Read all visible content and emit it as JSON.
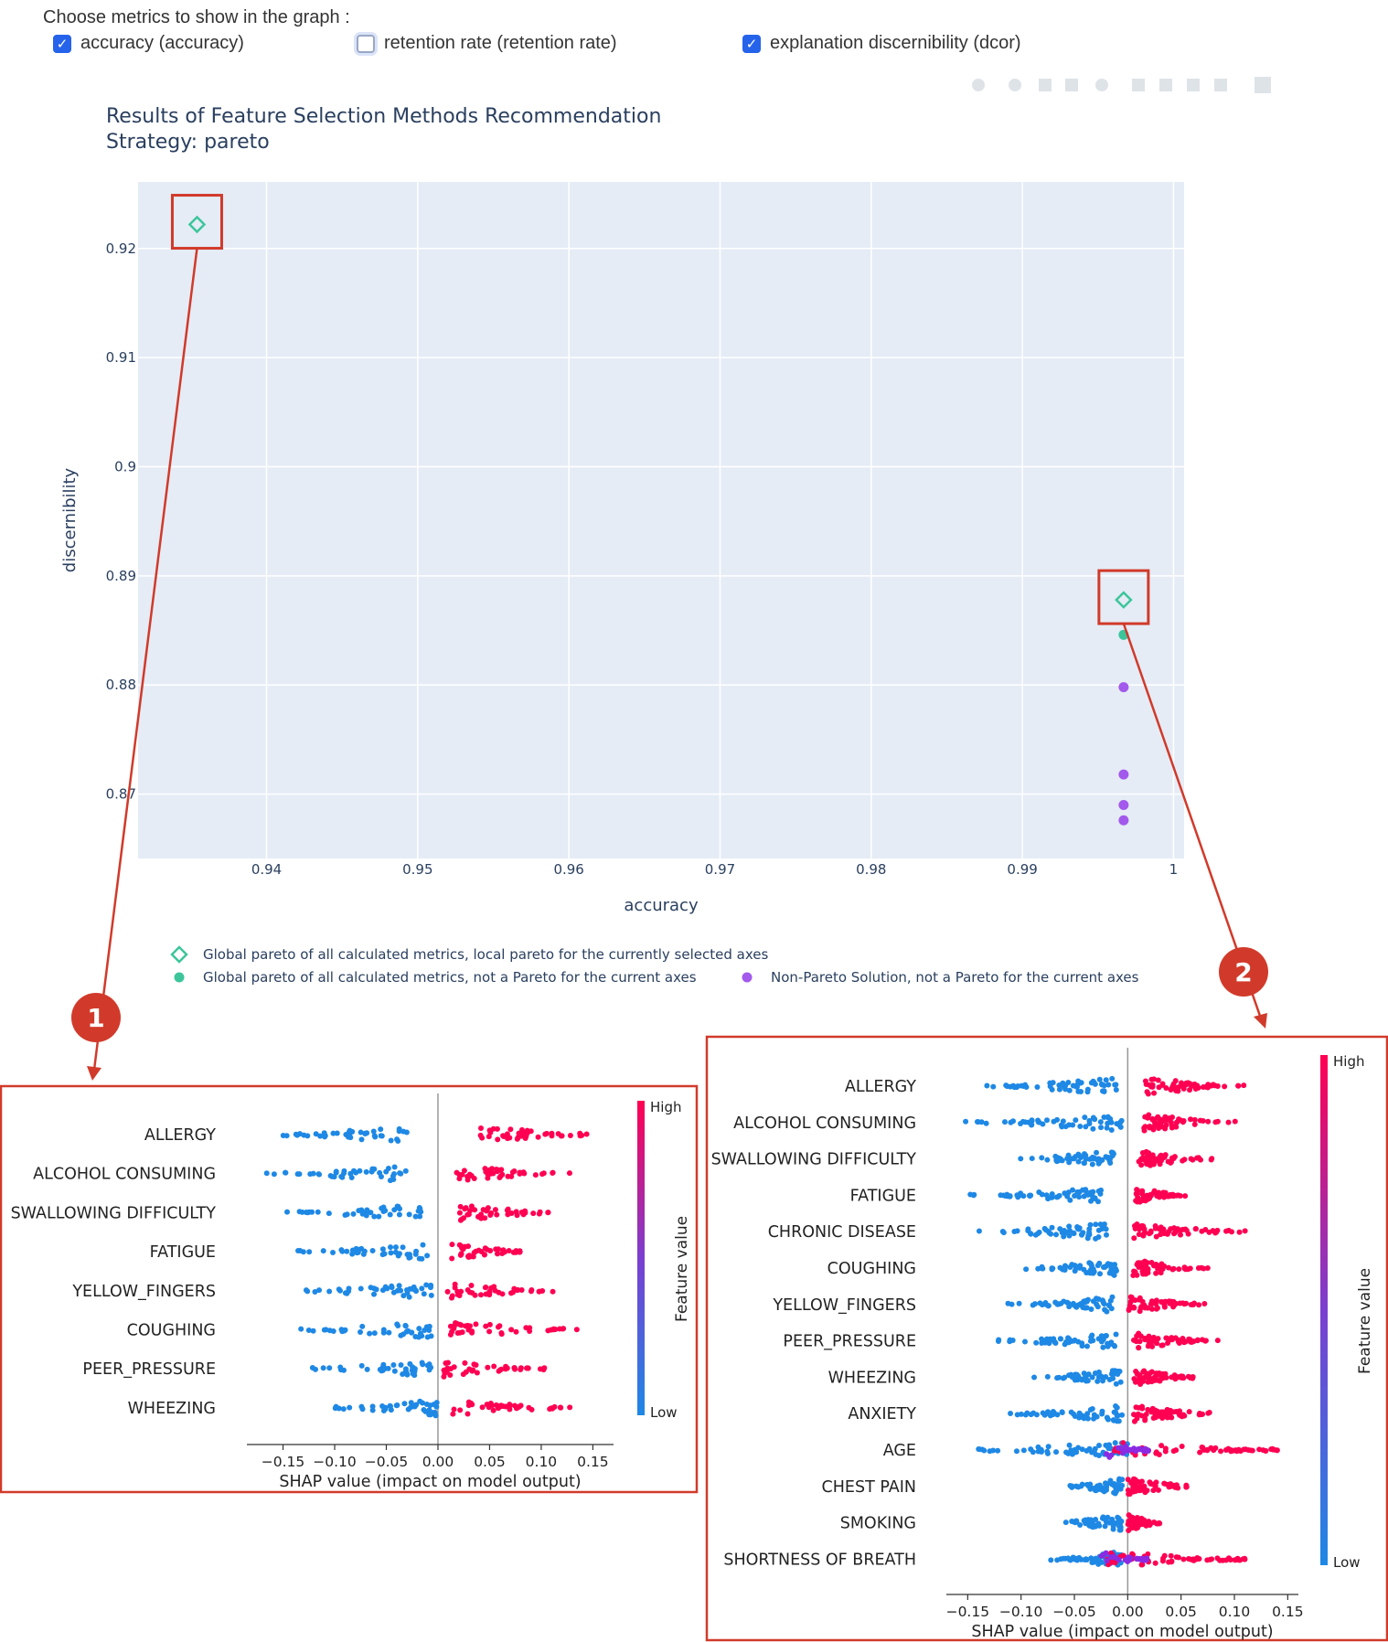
{
  "controls": {
    "heading": "Choose metrics to show in the graph :",
    "metrics": [
      {
        "label": "accuracy (accuracy)",
        "checked": true
      },
      {
        "label": "retention rate (retention rate)",
        "checked": false
      },
      {
        "label": "explanation discernibility (dcor)",
        "checked": true
      }
    ]
  },
  "callouts": [
    "1",
    "2"
  ],
  "colors": {
    "plot_bg": "#e5ecf6",
    "pareto_teal": "#3cc59b",
    "non_pareto_purple": "#a259ec",
    "callout_red": "#d13a2a",
    "shap_high": "#ff0052",
    "shap_low": "#1e88e5"
  },
  "chart_data": [
    {
      "type": "scatter",
      "title": "Results of Feature Selection Methods Recommendation",
      "subtitle": "Strategy: pareto",
      "xlabel": "accuracy",
      "ylabel": "discernibility",
      "xlim": [
        0.9315,
        1.0007
      ],
      "ylim": [
        0.8641,
        0.9261
      ],
      "xticks": [
        "0.94",
        "0.95",
        "0.96",
        "0.97",
        "0.98",
        "0.99",
        "1"
      ],
      "xtick_values": [
        0.94,
        0.95,
        0.96,
        0.97,
        0.98,
        0.99,
        1.0
      ],
      "yticks": [
        "0.87",
        "0.88",
        "0.89",
        "0.9",
        "0.91",
        "0.92"
      ],
      "ytick_values": [
        0.87,
        0.88,
        0.89,
        0.9,
        0.91,
        0.92
      ],
      "grid": true,
      "legend_position": "bottom",
      "series": [
        {
          "name": "Global pareto of all calculated metrics, local pareto for the currently selected axes",
          "marker": "diamond-open",
          "color": "#3cc59b",
          "points": [
            {
              "x": 0.9354,
              "y": 0.9222
            },
            {
              "x": 0.9967,
              "y": 0.8878
            }
          ]
        },
        {
          "name": "Global pareto of all calculated metrics, not a Pareto for the current axes",
          "marker": "circle",
          "color": "#3cc59b",
          "points": [
            {
              "x": 0.9967,
              "y": 0.8846
            }
          ]
        },
        {
          "name": "Non-Pareto Solution, not a Pareto for the current axes",
          "marker": "circle",
          "color": "#a259ec",
          "points": [
            {
              "x": 0.9967,
              "y": 0.8798
            },
            {
              "x": 0.9967,
              "y": 0.8718
            },
            {
              "x": 0.9967,
              "y": 0.869
            },
            {
              "x": 0.9967,
              "y": 0.8676
            }
          ]
        }
      ]
    },
    {
      "type": "scatter",
      "subtype": "shap-beeswarm",
      "callout": "1",
      "xlabel": "SHAP value (impact on model output)",
      "xlim": [
        -0.185,
        0.17
      ],
      "xticks": [
        "−0.15",
        "−0.10",
        "−0.05",
        "0.00",
        "0.05",
        "0.10",
        "0.15"
      ],
      "xtick_values": [
        -0.15,
        -0.1,
        -0.05,
        0.0,
        0.05,
        0.1,
        0.15
      ],
      "colorbar_label": "Feature value",
      "colorbar_high": "High",
      "colorbar_low": "Low",
      "features": [
        {
          "name": "ALLERGY",
          "low": [
            -0.17,
            -0.03
          ],
          "high": [
            0.04,
            0.155
          ]
        },
        {
          "name": "ALCOHOL CONSUMING",
          "low": [
            -0.17,
            -0.03
          ],
          "high": [
            0.015,
            0.13
          ]
        },
        {
          "name": "SWALLOWING DIFFICULTY",
          "low": [
            -0.155,
            -0.015
          ],
          "high": [
            0.02,
            0.125
          ]
        },
        {
          "name": "FATIGUE",
          "low": [
            -0.15,
            -0.01
          ],
          "high": [
            0.01,
            0.095
          ]
        },
        {
          "name": "YELLOW_FINGERS",
          "low": [
            -0.155,
            -0.005
          ],
          "high": [
            0.008,
            0.12
          ]
        },
        {
          "name": "COUGHING",
          "low": [
            -0.15,
            -0.005
          ],
          "high": [
            0.01,
            0.15
          ]
        },
        {
          "name": "PEER_PRESSURE",
          "low": [
            -0.14,
            -0.002
          ],
          "high": [
            0.005,
            0.11
          ]
        },
        {
          "name": "WHEEZING",
          "low": [
            -0.11,
            0.0
          ],
          "high": [
            0.01,
            0.15
          ]
        }
      ]
    },
    {
      "type": "scatter",
      "subtype": "shap-beeswarm",
      "callout": "2",
      "xlabel": "SHAP value (impact on model output)",
      "xlim": [
        -0.17,
        0.16
      ],
      "xticks": [
        "−0.15",
        "−0.10",
        "−0.05",
        "0.00",
        "0.05",
        "0.10",
        "0.15"
      ],
      "xtick_values": [
        -0.15,
        -0.1,
        -0.05,
        0.0,
        0.05,
        0.1,
        0.15
      ],
      "colorbar_label": "Feature value",
      "colorbar_high": "High",
      "colorbar_low": "Low",
      "features": [
        {
          "name": "ALLERGY",
          "low": [
            -0.14,
            -0.01
          ],
          "high": [
            0.015,
            0.12
          ]
        },
        {
          "name": "ALCOHOL CONSUMING",
          "low": [
            -0.155,
            -0.005
          ],
          "high": [
            0.015,
            0.11
          ]
        },
        {
          "name": "SWALLOWING DIFFICULTY",
          "low": [
            -0.11,
            -0.01
          ],
          "high": [
            0.01,
            0.08
          ]
        },
        {
          "name": "FATIGUE",
          "low": [
            -0.15,
            -0.02
          ],
          "high": [
            0.005,
            0.06
          ]
        },
        {
          "name": "CHRONIC DISEASE",
          "low": [
            -0.15,
            -0.02
          ],
          "high": [
            0.005,
            0.115
          ]
        },
        {
          "name": "COUGHING",
          "low": [
            -0.1,
            -0.01
          ],
          "high": [
            0.005,
            0.08
          ]
        },
        {
          "name": "YELLOW_FINGERS",
          "low": [
            -0.115,
            -0.01
          ],
          "high": [
            0.0,
            0.08
          ]
        },
        {
          "name": "PEER_PRESSURE",
          "low": [
            -0.14,
            -0.01
          ],
          "high": [
            0.005,
            0.085
          ]
        },
        {
          "name": "WHEEZING",
          "low": [
            -0.09,
            -0.005
          ],
          "high": [
            0.005,
            0.07
          ]
        },
        {
          "name": "ANXIETY",
          "low": [
            -0.115,
            -0.005
          ],
          "high": [
            0.005,
            0.09
          ]
        },
        {
          "name": "AGE",
          "low": [
            -0.16,
            0.0
          ],
          "high": [
            -0.02,
            0.145
          ],
          "mixed": true
        },
        {
          "name": "CHEST PAIN",
          "low": [
            -0.065,
            -0.005
          ],
          "high": [
            0.0,
            0.07
          ]
        },
        {
          "name": "SMOKING",
          "low": [
            -0.075,
            -0.005
          ],
          "high": [
            0.0,
            0.035
          ]
        },
        {
          "name": "SHORTNESS OF BREATH",
          "low": [
            -0.075,
            -0.005
          ],
          "high": [
            -0.02,
            0.11
          ],
          "mixed": true
        }
      ]
    }
  ]
}
